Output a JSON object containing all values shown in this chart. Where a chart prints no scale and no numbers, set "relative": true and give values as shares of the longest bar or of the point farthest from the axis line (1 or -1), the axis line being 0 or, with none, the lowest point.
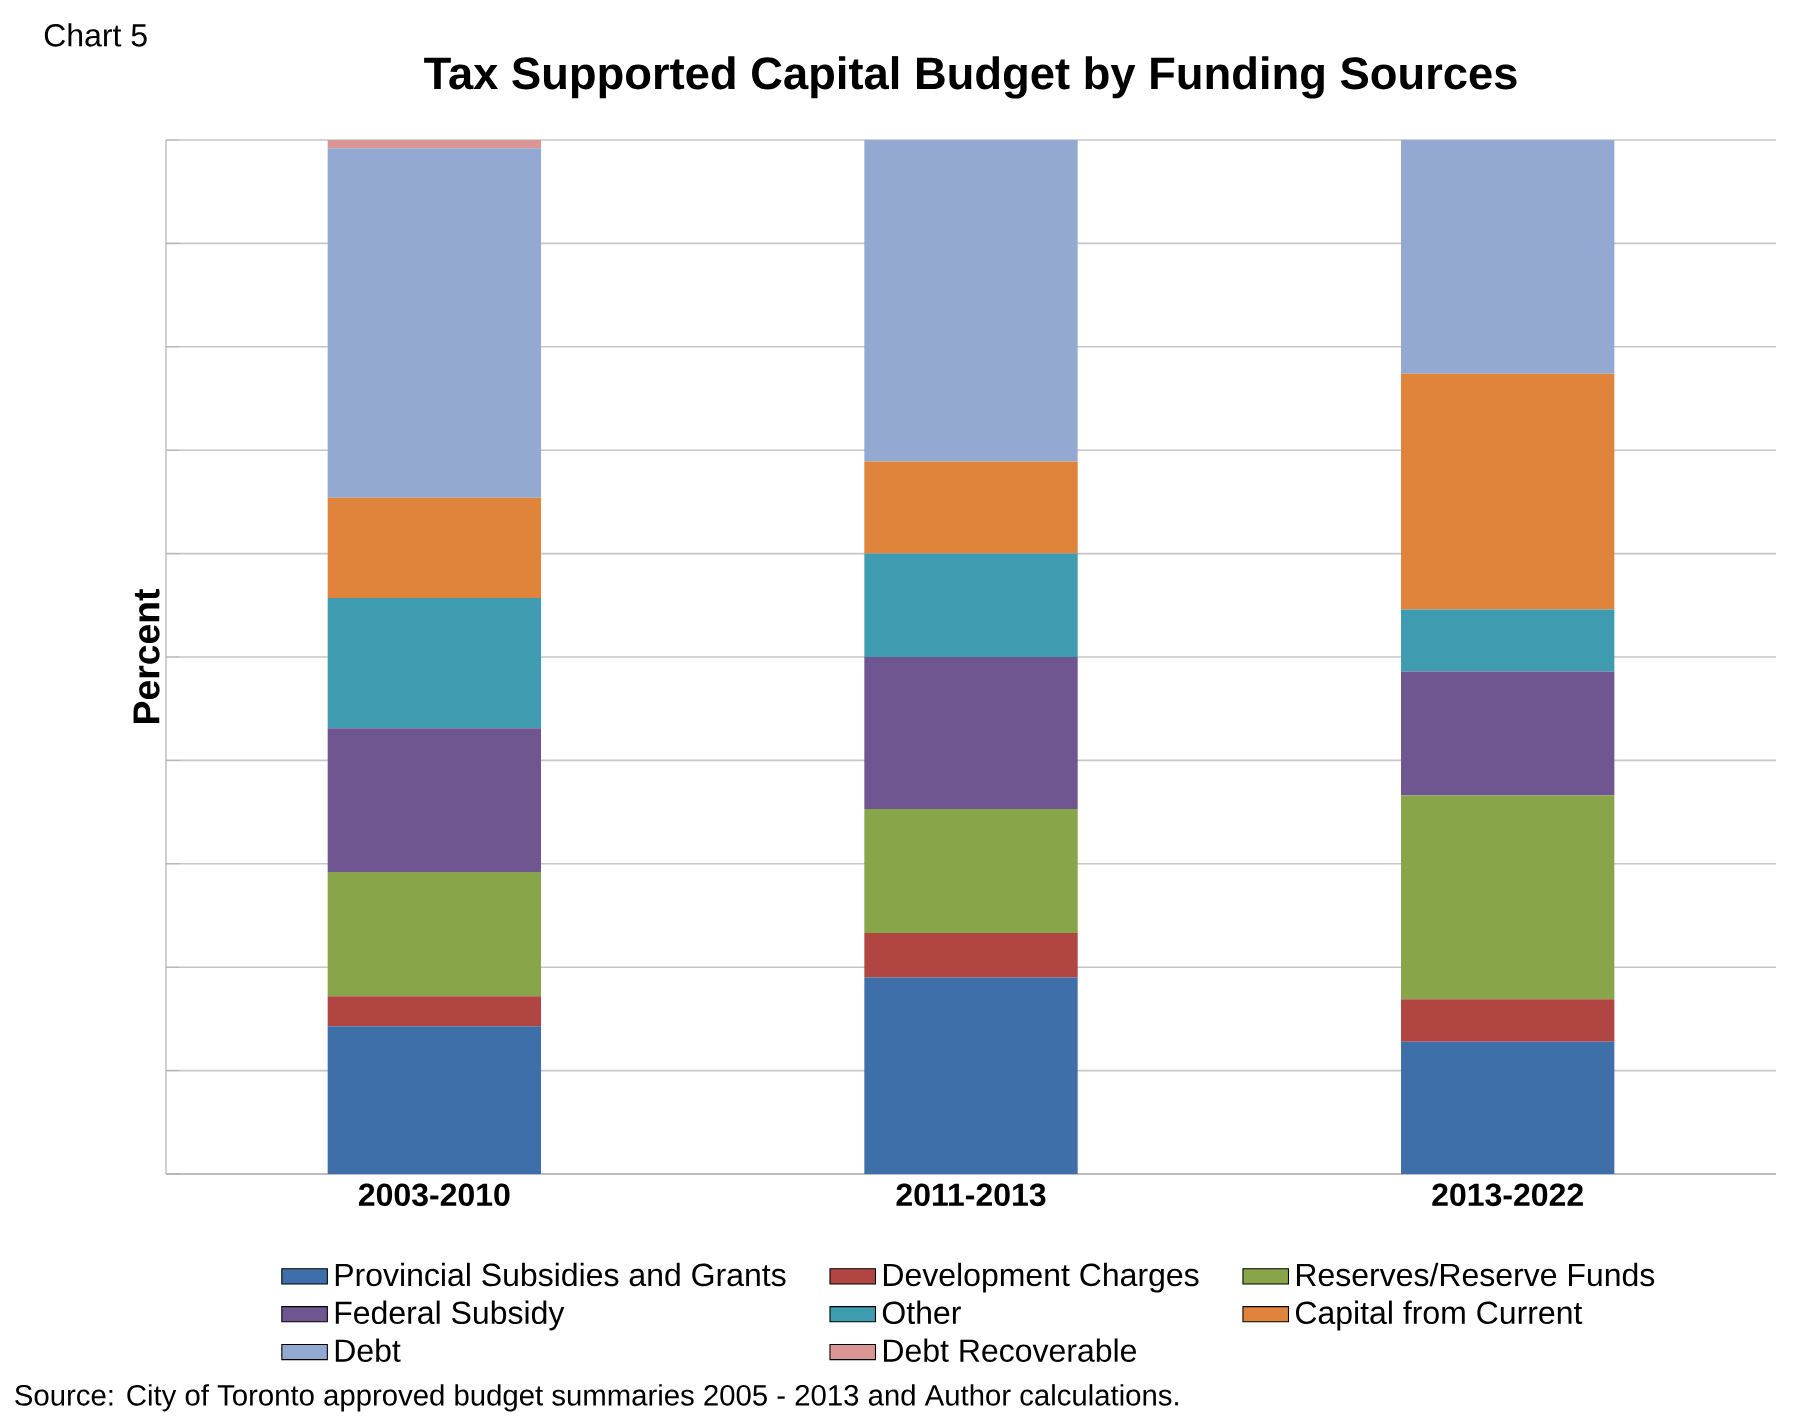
{
  "chart_data": {
    "type": "bar",
    "stacked": true,
    "relative": true,
    "title": "Tax Supported Capital Budget by Funding Sources",
    "ylabel": "Percent",
    "categories": [
      "2003-2010",
      "2011-2013",
      "2013-2022"
    ],
    "series": [
      {
        "name": "Provincial Subsidies and Grants",
        "color": "#3f6fa8",
        "values": [
          0.143,
          0.19,
          0.128
        ]
      },
      {
        "name": "Development Charges",
        "color": "#b04541",
        "values": [
          0.029,
          0.043,
          0.041
        ]
      },
      {
        "name": "Reserves/Reserve Funds",
        "color": "#88a54a",
        "values": [
          0.12,
          0.12,
          0.197
        ]
      },
      {
        "name": "Federal Subsidy",
        "color": "#705690",
        "values": [
          0.139,
          0.147,
          0.12
        ]
      },
      {
        "name": "Other",
        "color": "#3e9bb0",
        "values": [
          0.126,
          0.1,
          0.06
        ]
      },
      {
        "name": "Capital from Current",
        "color": "#df843a",
        "values": [
          0.097,
          0.089,
          0.228
        ]
      },
      {
        "name": "Debt",
        "color": "#94a9d2",
        "values": [
          0.338,
          0.311,
          0.226
        ]
      },
      {
        "name": "Debt Recoverable",
        "color": "#d99694",
        "values": [
          0.008,
          0,
          0
        ]
      }
    ],
    "grid": "y",
    "legend": "bottom",
    "annotations": [
      "Chart 5",
      "Source: City of Toronto approved budget summaries 2005 - 2013 and Author calculations."
    ]
  }
}
